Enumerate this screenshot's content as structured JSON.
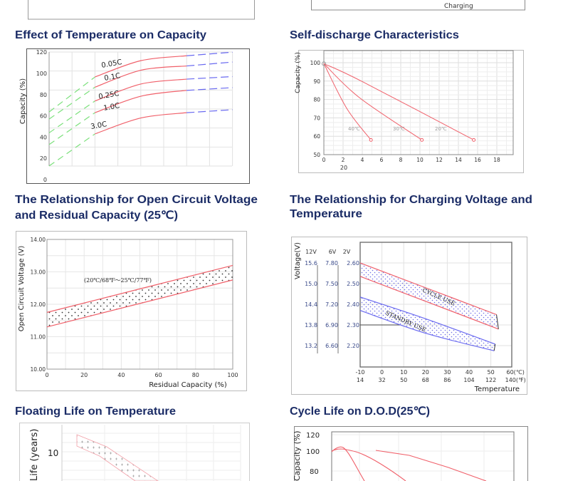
{
  "top_fragment": {
    "right_text": "Charging"
  },
  "titles": {
    "temp_capacity": "Effect of Temperature on Capacity",
    "self_discharge": "Self-discharge Characteristics",
    "ocv_line1": "The Relationship for Open Circuit Voltage",
    "ocv_line2": "and Residual Capacity (25℃)",
    "charging_line1": "The Relationship for Charging Voltage and",
    "charging_line2": "Temperature",
    "floating_life": "Floating Life on Temperature",
    "cycle_life": "Cycle Life on D.O.D(25℃)"
  },
  "colors": {
    "title": "#1b2c66",
    "red": "#f0606a",
    "green": "#7be07b",
    "blue": "#6a6af0",
    "tick_blue": "#3a4a8a"
  },
  "chart_data": [
    {
      "type": "line",
      "title": "Effect of Temperature on Capacity",
      "ylabel": "Capacity (%)",
      "ylim": [
        0,
        120
      ],
      "yticks": [
        "0",
        "20",
        "40",
        "60",
        "80",
        "100",
        "120"
      ],
      "x": [
        0,
        2,
        4,
        6,
        8
      ],
      "grid": true,
      "series": [
        {
          "name": "0.05C",
          "values": [
            63.7,
            96.6,
            112,
            116.6,
            120
          ]
        },
        {
          "name": "0.1C",
          "values": [
            57,
            87,
            103,
            107,
            110.7
          ]
        },
        {
          "name": "0.25C",
          "values": [
            44,
            74,
            90,
            94.6,
            97
          ]
        },
        {
          "name": "1.0C",
          "values": [
            33,
            63,
            78.5,
            84,
            86.6
          ]
        },
        {
          "name": "3.0C",
          "values": [
            12.8,
            43,
            58,
            63,
            65.8
          ]
        }
      ]
    },
    {
      "type": "line",
      "title": "Self-discharge Characteristics",
      "ylabel": "Capacity (%)",
      "ylim": [
        50,
        106
      ],
      "xlim": [
        0,
        19.5
      ],
      "yticks": [
        "50",
        "60",
        "70",
        "80",
        "90",
        "100"
      ],
      "xticks": [
        "0",
        "2",
        "4",
        "6",
        "8",
        "10",
        "12",
        "14",
        "16",
        "18"
      ],
      "extra_xlabel": "20",
      "grid": true,
      "series": [
        {
          "name": "40℃",
          "points": [
            [
              0,
              99.5
            ],
            [
              2.4,
              75
            ],
            [
              4.9,
              58
            ]
          ]
        },
        {
          "name": "30℃",
          "points": [
            [
              0,
              99.5
            ],
            [
              3.7,
              81
            ],
            [
              10.2,
              58
            ]
          ]
        },
        {
          "name": "20℃",
          "points": [
            [
              0,
              99.5
            ],
            [
              3.9,
              90
            ],
            [
              15.6,
              58
            ]
          ]
        }
      ]
    },
    {
      "type": "area",
      "title": "The Relationship for Open Circuit Voltage and Residual Capacity (25℃)",
      "xlabel": "Residual Capacity  (%)",
      "ylabel": "Open Circuit Voltage (V)",
      "xlim": [
        0,
        100
      ],
      "ylim": [
        10,
        14
      ],
      "xticks": [
        "0",
        "20",
        "40",
        "60",
        "80",
        "100"
      ],
      "yticks": [
        "10.00",
        "11.00",
        "12.00",
        "13.00",
        "14.00"
      ],
      "annotation": "(20℃/68℉～25℃/77℉)",
      "grid": true,
      "band": {
        "upper": [
          [
            0,
            11.75
          ],
          [
            100,
            13.2
          ]
        ],
        "lower": [
          [
            0,
            11.3
          ],
          [
            100,
            12.75
          ]
        ]
      }
    },
    {
      "type": "area",
      "title": "The Relationship for Charging Voltage and Temperature",
      "xlabel": "Temperature",
      "ylabel": "Voltage(V)",
      "xlim": [
        -10,
        60
      ],
      "scale_headers": [
        "12V",
        "6V",
        "2V"
      ],
      "yticks_12v": [
        "15.6",
        "15.0",
        "14.4",
        "13.8",
        "13.2"
      ],
      "yticks_6v": [
        "7.80",
        "7.50",
        "7.20",
        "6.90",
        "6.60"
      ],
      "yticks_2v": [
        "2.60",
        "2.50",
        "2.40",
        "2.30",
        "2.20"
      ],
      "xticks_c": [
        "-10",
        "0",
        "10",
        "20",
        "30",
        "40",
        "50",
        "60(℃)"
      ],
      "xticks_f": [
        "14",
        "32",
        "50",
        "68",
        "86",
        "104",
        "122",
        "140(℉)"
      ],
      "grid": true,
      "bands": [
        {
          "name": "CYCLE USE",
          "upper": [
            [
              -10,
              2.6
            ],
            [
              52.6,
              2.35
            ]
          ],
          "lower": [
            [
              -10,
              2.535
            ],
            [
              53.5,
              2.28
            ]
          ]
        },
        {
          "name": "STANDBY USE",
          "upper": [
            [
              -10,
              2.435
            ],
            [
              20,
              2.33
            ],
            [
              52,
              2.207
            ]
          ],
          "lower": [
            [
              -10,
              2.37
            ],
            [
              20,
              2.26
            ],
            [
              51.5,
              2.175
            ]
          ]
        }
      ]
    },
    {
      "type": "area",
      "title": "Floating Life on Temperature",
      "ylabel": "Life (years)",
      "yticks": [
        "10"
      ],
      "grid": true
    },
    {
      "type": "line",
      "title": "Cycle Life on D.O.D(25℃)",
      "ylabel": "Capacity  (%)",
      "yticks": [
        "120",
        "100",
        "80"
      ],
      "grid": true
    }
  ]
}
